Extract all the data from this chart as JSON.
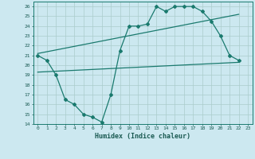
{
  "title": "",
  "xlabel": "Humidex (Indice chaleur)",
  "xlim": [
    -0.5,
    23.5
  ],
  "ylim": [
    14,
    26.5
  ],
  "yticks": [
    14,
    15,
    16,
    17,
    18,
    19,
    20,
    21,
    22,
    23,
    24,
    25,
    26
  ],
  "xticks": [
    0,
    1,
    2,
    3,
    4,
    5,
    6,
    7,
    8,
    9,
    10,
    11,
    12,
    13,
    14,
    15,
    16,
    17,
    18,
    19,
    20,
    21,
    22,
    23
  ],
  "bg_color": "#cce8f0",
  "grid_color": "#aacccc",
  "line_color": "#1a7a6e",
  "line1_x": [
    0,
    1,
    2,
    3,
    4,
    5,
    6,
    7,
    8,
    9,
    10,
    11,
    12,
    13,
    14,
    15,
    16,
    17,
    18,
    19,
    20,
    21,
    22
  ],
  "line1_y": [
    21.0,
    20.5,
    19.0,
    16.5,
    16.0,
    15.0,
    14.7,
    14.2,
    17.0,
    21.5,
    24.0,
    24.0,
    24.2,
    26.0,
    25.5,
    26.0,
    26.0,
    26.0,
    25.5,
    24.5,
    23.0,
    21.0,
    20.5
  ],
  "line2_x": [
    0,
    22
  ],
  "line2_y": [
    19.3,
    20.3
  ],
  "line3_x": [
    0,
    22
  ],
  "line3_y": [
    21.2,
    25.2
  ]
}
